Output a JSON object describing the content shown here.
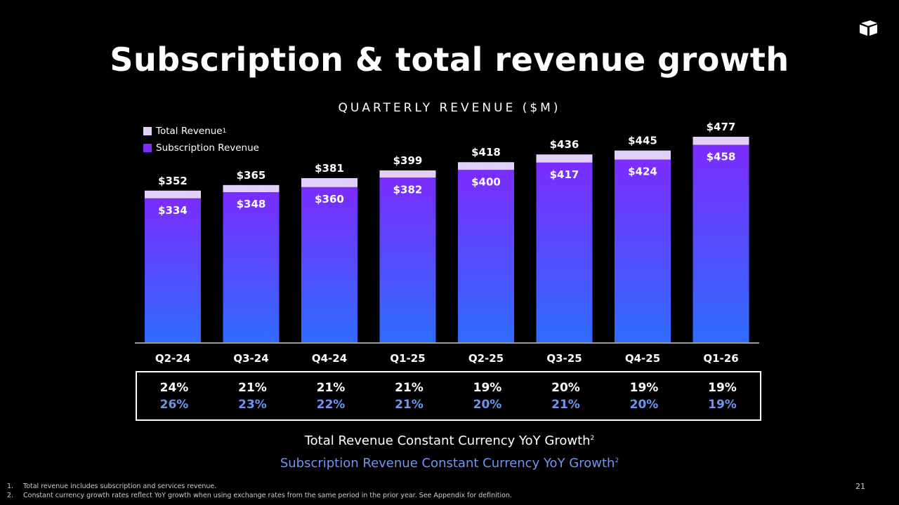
{
  "title": "Subscription & total revenue growth",
  "chart_data": {
    "type": "bar",
    "title": "QUARTERLY REVENUE ($M)",
    "categories": [
      "Q2-24",
      "Q3-24",
      "Q4-24",
      "Q1-25",
      "Q2-25",
      "Q3-25",
      "Q4-25",
      "Q1-26"
    ],
    "series": [
      {
        "name": "Total Revenue",
        "values": [
          352,
          365,
          381,
          399,
          418,
          436,
          445,
          477
        ],
        "labels": [
          "$352",
          "$365",
          "$381",
          "$399",
          "$418",
          "$436",
          "$445",
          "$477"
        ],
        "color": "#e3cffc"
      },
      {
        "name": "Subscription Revenue",
        "values": [
          334,
          348,
          360,
          382,
          400,
          417,
          424,
          458
        ],
        "labels": [
          "$334",
          "$348",
          "$360",
          "$382",
          "$400",
          "$417",
          "$424",
          "$458"
        ],
        "color": "#7b2cff"
      }
    ],
    "xlabel": "",
    "ylabel": "",
    "ylim": [
      0,
      477
    ],
    "grid": false
  },
  "legend": {
    "total_label": "Total Revenue",
    "total_sup": "1",
    "sub_label": "Subscription Revenue"
  },
  "growth": {
    "total": [
      "24%",
      "21%",
      "21%",
      "21%",
      "19%",
      "20%",
      "19%",
      "19%"
    ],
    "subscription": [
      "26%",
      "23%",
      "22%",
      "21%",
      "20%",
      "21%",
      "20%",
      "19%"
    ]
  },
  "captions": {
    "total": "Total Revenue Constant Currency YoY Growth",
    "total_sup": "2",
    "subscription": "Subscription Revenue Constant Currency YoY Growth",
    "subscription_sup": "2"
  },
  "footnotes": [
    {
      "num": "1.",
      "text": "Total revenue includes subscription and services revenue."
    },
    {
      "num": "2.",
      "text": "Constant currency growth rates reflect YoY growth when using exchange rates from the same period in the prior year. See Appendix for definition."
    }
  ],
  "page_number": "21",
  "colors": {
    "background": "#000000",
    "total_bar": "#e3cffc",
    "sub_top": "#7b2cff",
    "sub_bottom": "#2e6cff",
    "growth_sub_text": "#6e96f0"
  }
}
